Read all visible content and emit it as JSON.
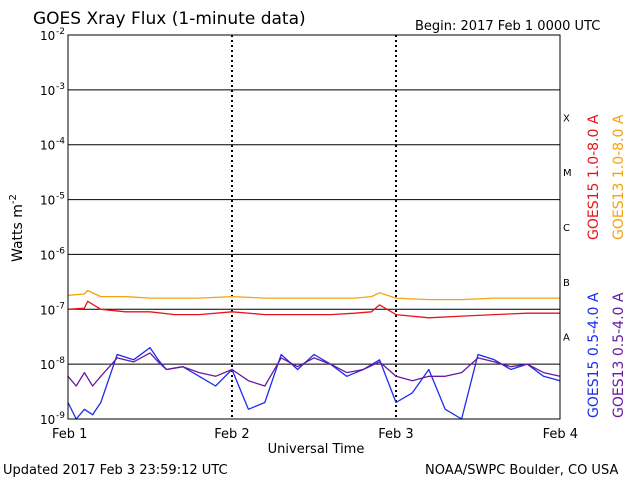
{
  "header": {
    "title": "GOES Xray Flux (1-minute data)",
    "begin": "Begin:  2017 Feb 1 0000 UTC"
  },
  "footer": {
    "updated": "Updated 2017 Feb  3 23:59:12 UTC",
    "credit": "NOAA/SWPC Boulder, CO USA"
  },
  "colors": {
    "goes15_long": "#e8141c",
    "goes13_long": "#f5a20f",
    "goes15_short": "#1c2cf0",
    "goes13_short": "#6a1aa0",
    "grid": "#000000"
  },
  "chart_data": {
    "type": "line",
    "title": "GOES Xray Flux (1-minute data)",
    "xlabel": "Universal Time",
    "ylabel": "Watts m",
    "ylabel_superscript": "-2",
    "yscale": "log",
    "ylim": [
      1e-09,
      0.01
    ],
    "y_ticks": [
      {
        "value": 0.01,
        "base": "10",
        "exp": "-2"
      },
      {
        "value": 0.001,
        "base": "10",
        "exp": "-3"
      },
      {
        "value": 0.0001,
        "base": "10",
        "exp": "-4"
      },
      {
        "value": 1e-05,
        "base": "10",
        "exp": "-5"
      },
      {
        "value": 1e-06,
        "base": "10",
        "exp": "-6"
      },
      {
        "value": 1e-07,
        "base": "10",
        "exp": "-7"
      },
      {
        "value": 1e-08,
        "base": "10",
        "exp": "-8"
      },
      {
        "value": 1e-09,
        "base": "10",
        "exp": "-9"
      }
    ],
    "x_ticks": [
      "Feb 1",
      "Feb 2",
      "Feb 3",
      "Feb 4"
    ],
    "x_range_days": [
      0,
      3
    ],
    "flare_classes": [
      {
        "label": "X",
        "value": 0.000316
      },
      {
        "label": "M",
        "value": 3.16e-05
      },
      {
        "label": "C",
        "value": 3.16e-06
      },
      {
        "label": "B",
        "value": 3.16e-07
      },
      {
        "label": "A",
        "value": 3.16e-08
      }
    ],
    "series": [
      {
        "name": "GOES15 1.0-8.0 A",
        "color": "#e8141c",
        "x": [
          0.0,
          0.1,
          0.12,
          0.2,
          0.35,
          0.5,
          0.65,
          0.8,
          1.0,
          1.2,
          1.4,
          1.6,
          1.75,
          1.85,
          1.9,
          2.0,
          2.2,
          2.4,
          2.6,
          2.8,
          3.0
        ],
        "y": [
          1e-07,
          1.05e-07,
          1.4e-07,
          1e-07,
          9e-08,
          9e-08,
          8e-08,
          8e-08,
          9e-08,
          8e-08,
          8e-08,
          8e-08,
          8.5e-08,
          9e-08,
          1.2e-07,
          8e-08,
          7e-08,
          7.5e-08,
          8e-08,
          8.5e-08,
          8.5e-08
        ]
      },
      {
        "name": "GOES13 1.0-8.0 A",
        "color": "#f5a20f",
        "x": [
          0.0,
          0.1,
          0.12,
          0.2,
          0.35,
          0.5,
          0.65,
          0.8,
          1.0,
          1.2,
          1.4,
          1.6,
          1.75,
          1.85,
          1.9,
          2.0,
          2.2,
          2.4,
          2.6,
          2.8,
          3.0
        ],
        "y": [
          1.8e-07,
          1.9e-07,
          2.2e-07,
          1.7e-07,
          1.7e-07,
          1.6e-07,
          1.6e-07,
          1.6e-07,
          1.7e-07,
          1.6e-07,
          1.6e-07,
          1.6e-07,
          1.6e-07,
          1.7e-07,
          2e-07,
          1.6e-07,
          1.5e-07,
          1.5e-07,
          1.6e-07,
          1.6e-07,
          1.6e-07
        ]
      },
      {
        "name": "GOES15 0.5-4.0 A",
        "color": "#1c2cf0",
        "x": [
          0.0,
          0.05,
          0.1,
          0.15,
          0.2,
          0.3,
          0.4,
          0.5,
          0.55,
          0.6,
          0.7,
          0.8,
          0.9,
          1.0,
          1.1,
          1.2,
          1.3,
          1.4,
          1.5,
          1.6,
          1.7,
          1.8,
          1.9,
          2.0,
          2.1,
          2.2,
          2.3,
          2.4,
          2.5,
          2.6,
          2.7,
          2.8,
          2.9,
          3.0
        ],
        "y": [
          2e-09,
          1e-09,
          1.5e-09,
          1.2e-09,
          2e-09,
          1.5e-08,
          1.2e-08,
          2e-08,
          1.2e-08,
          8e-09,
          9e-09,
          6e-09,
          4e-09,
          8e-09,
          1.5e-09,
          2e-09,
          1.5e-08,
          8e-09,
          1.5e-08,
          1e-08,
          6e-09,
          8e-09,
          1.2e-08,
          2e-09,
          3e-09,
          8e-09,
          1.5e-09,
          1e-09,
          1.5e-08,
          1.2e-08,
          8e-09,
          1e-08,
          6e-09,
          5e-09
        ]
      },
      {
        "name": "GOES13 0.5-4.0 A",
        "color": "#6a1aa0",
        "x": [
          0.0,
          0.05,
          0.1,
          0.15,
          0.2,
          0.3,
          0.4,
          0.5,
          0.55,
          0.6,
          0.7,
          0.8,
          0.9,
          1.0,
          1.1,
          1.2,
          1.3,
          1.4,
          1.5,
          1.6,
          1.7,
          1.8,
          1.9,
          2.0,
          2.1,
          2.2,
          2.3,
          2.4,
          2.5,
          2.6,
          2.7,
          2.8,
          2.9,
          3.0
        ],
        "y": [
          6e-09,
          4e-09,
          7e-09,
          4e-09,
          6e-09,
          1.3e-08,
          1.1e-08,
          1.6e-08,
          1.1e-08,
          8e-09,
          9e-09,
          7e-09,
          6e-09,
          8e-09,
          5e-09,
          4e-09,
          1.3e-08,
          9e-09,
          1.3e-08,
          1e-08,
          7e-09,
          8e-09,
          1.1e-08,
          6e-09,
          5e-09,
          6e-09,
          6e-09,
          7e-09,
          1.3e-08,
          1.1e-08,
          9e-09,
          1e-08,
          7e-09,
          6e-09
        ]
      }
    ],
    "legend_placement": "right, vertical"
  }
}
